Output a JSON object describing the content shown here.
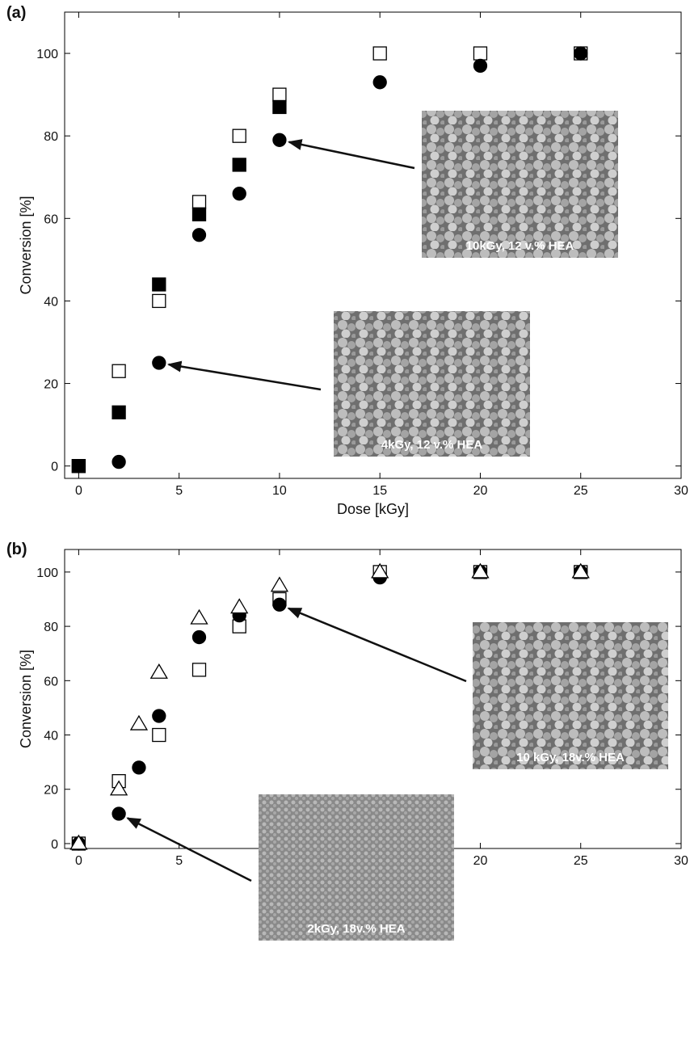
{
  "chart_data": [
    {
      "type": "scatter",
      "panel_label": "(a)",
      "x_label": "Dose [kGy]",
      "y_label": "Conversion [%]",
      "xlim": [
        -0.7,
        30
      ],
      "ylim": [
        -3,
        110
      ],
      "xticks": [
        0,
        5,
        10,
        15,
        20,
        25,
        30
      ],
      "yticks": [
        0,
        20,
        40,
        60,
        80,
        100
      ],
      "series": [
        {
          "marker": "square",
          "filled": false,
          "color": "#000000",
          "x": [
            0,
            2,
            4,
            6,
            8,
            10,
            15,
            20,
            25
          ],
          "values": [
            0,
            23,
            40,
            64,
            80,
            90,
            100,
            100,
            100
          ]
        },
        {
          "marker": "square",
          "filled": true,
          "color": "#000000",
          "x": [
            0,
            2,
            4,
            6,
            8,
            10
          ],
          "values": [
            0,
            13,
            44,
            61,
            73,
            87
          ]
        },
        {
          "marker": "circle",
          "filled": true,
          "color": "#000000",
          "x": [
            0,
            2,
            4,
            6,
            8,
            10,
            15,
            20,
            25
          ],
          "values": [
            0,
            1,
            25,
            56,
            66,
            79,
            93,
            97,
            100
          ]
        }
      ],
      "annotations": [
        {
          "text": "10kGy, 12 v.% HEA"
        },
        {
          "text": "4kGy, 12 v.% HEA"
        }
      ]
    },
    {
      "type": "scatter",
      "panel_label": "(b)",
      "x_label": "Dose [kGy]",
      "y_label": "Conversion [%]",
      "xlim": [
        -0.7,
        30
      ],
      "ylim": [
        -1.8,
        108.3
      ],
      "xticks": [
        0,
        5,
        10,
        15,
        20,
        25,
        30
      ],
      "yticks": [
        0,
        20,
        40,
        60,
        80,
        100
      ],
      "series": [
        {
          "marker": "square",
          "filled": false,
          "color": "#000000",
          "x": [
            0,
            2,
            4,
            6,
            8,
            10,
            15,
            20,
            25
          ],
          "values": [
            0,
            23,
            40,
            64,
            80,
            90,
            100,
            100,
            100
          ]
        },
        {
          "marker": "circle",
          "filled": true,
          "color": "#000000",
          "x": [
            0,
            2,
            3,
            4,
            6,
            8,
            10,
            15,
            20,
            25
          ],
          "values": [
            0,
            11,
            28,
            47,
            76,
            84,
            88,
            98,
            100,
            100
          ]
        },
        {
          "marker": "triangle",
          "filled": false,
          "color": "#000000",
          "x": [
            0,
            2,
            3,
            4,
            6,
            8,
            10,
            15,
            20,
            25
          ],
          "values": [
            0,
            20,
            44,
            63,
            83,
            87,
            95,
            100,
            100,
            100
          ]
        }
      ],
      "annotations": [
        {
          "text": "10 kGy, 18v.% HEA"
        },
        {
          "text": "2kGy, 18v.% HEA"
        }
      ]
    }
  ]
}
